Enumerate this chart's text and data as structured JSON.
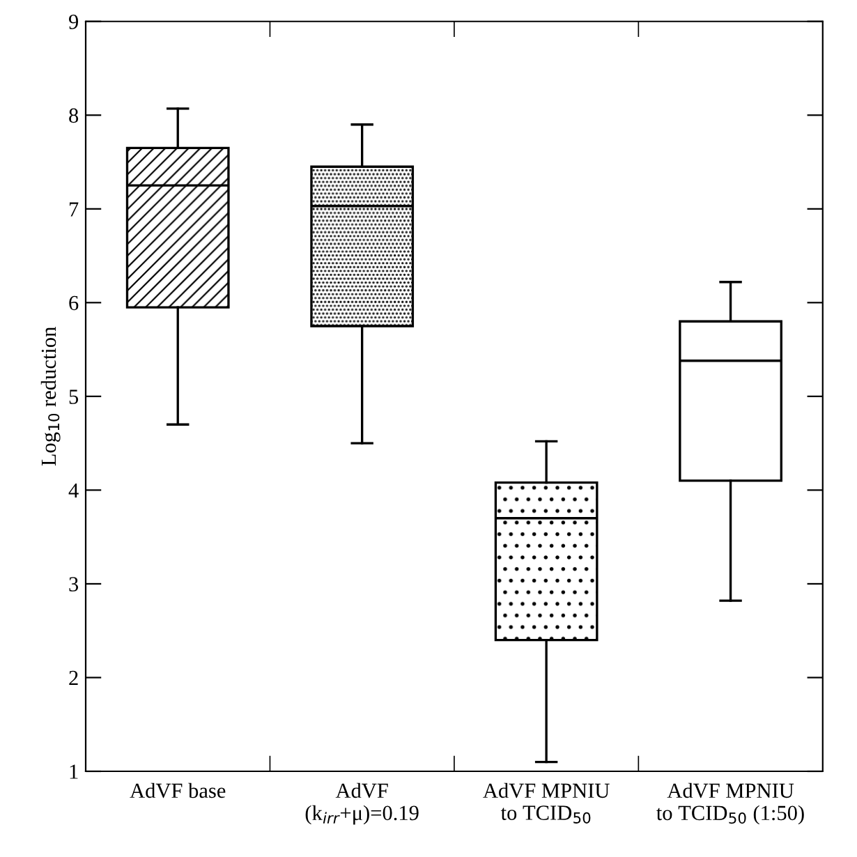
{
  "chart_data": {
    "type": "box",
    "ylabel": "Log$_{10}$ reduction",
    "categories": [
      "AdVF base",
      "AdVF\n(k$_{irr}$+μ)=0.19",
      "AdVF MPNIU\nto TCID$_{50}$",
      "AdVF MPNIU\nto TCID$_{50}$ (1:50)"
    ],
    "boxes": [
      {
        "low": 4.7,
        "q1": 5.95,
        "median": 7.25,
        "q3": 7.65,
        "high": 8.07
      },
      {
        "low": 4.5,
        "q1": 5.75,
        "median": 7.03,
        "q3": 7.45,
        "high": 7.9
      },
      {
        "low": 1.1,
        "q1": 2.4,
        "median": 3.7,
        "q3": 4.08,
        "high": 4.52
      },
      {
        "low": 2.82,
        "q1": 4.1,
        "median": 5.38,
        "q3": 5.8,
        "high": 6.22
      }
    ],
    "ylim": [
      1,
      9
    ],
    "yticks": [
      1,
      2,
      3,
      4,
      5,
      6,
      7,
      8,
      9
    ],
    "grid": false
  }
}
